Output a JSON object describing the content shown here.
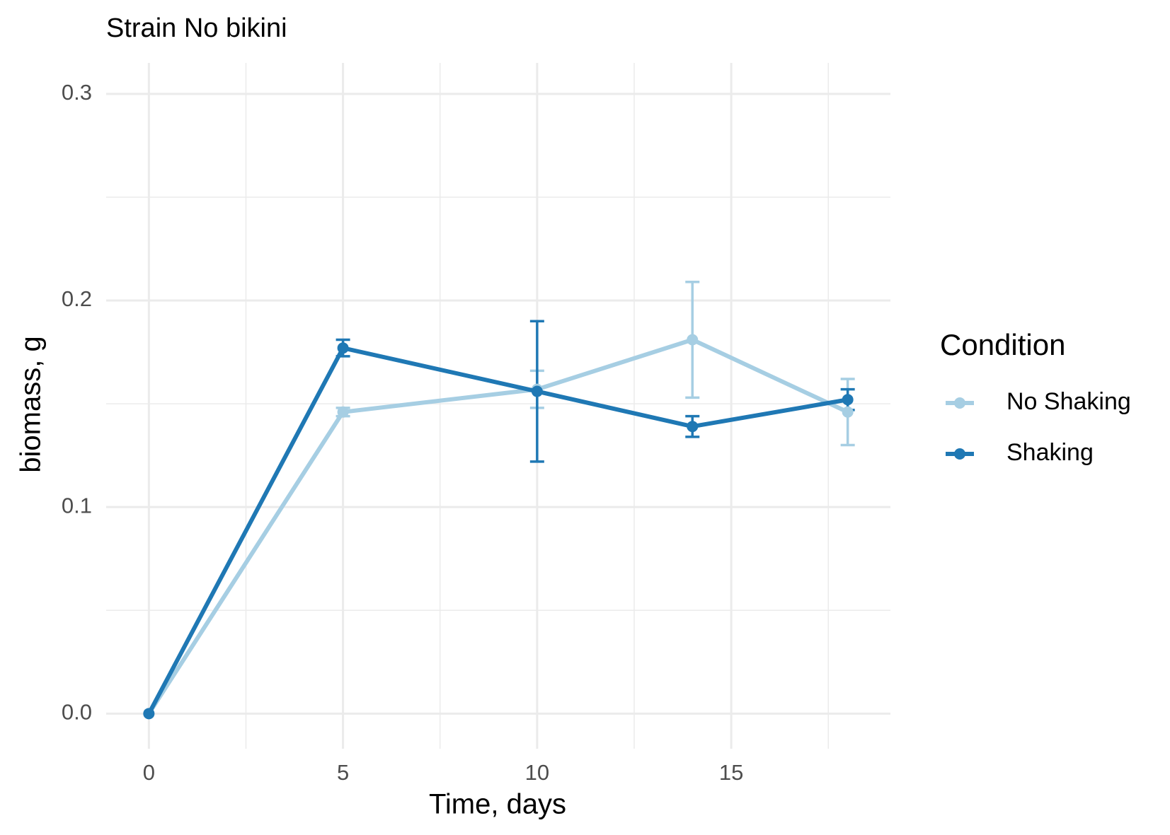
{
  "chart_data": {
    "type": "line",
    "title": "Strain No  bikini",
    "x_label": "Time, days",
    "y_label": "biomass, g",
    "legend_title": "Condition",
    "legend_position": "right",
    "grid": true,
    "xlim": [
      -1.1,
      19.1
    ],
    "xticks": [
      0,
      5,
      10,
      15
    ],
    "x_minor_grid": [
      2.5,
      7.5,
      12.5,
      17.5
    ],
    "ylim": [
      -0.017,
      0.315
    ],
    "yticks": [
      {
        "value": 0,
        "label": "0.0"
      },
      0.1,
      0.2,
      0.3
    ],
    "y_minor_grid": [
      0.05,
      0.15,
      0.25
    ],
    "x": [
      0,
      5,
      10,
      14,
      18
    ],
    "series": [
      {
        "name": "No Shaking",
        "color": "#a6cee3",
        "values": [
          0,
          0.146,
          0.157,
          0.181,
          0.146
        ],
        "errors": [
          0,
          0.002,
          0.009,
          0.028,
          0.016
        ]
      },
      {
        "name": "Shaking",
        "color": "#1f78b4",
        "values": [
          0,
          0.177,
          0.156,
          0.139,
          0.152
        ],
        "errors": [
          0,
          0.004,
          0.034,
          0.005,
          0.005
        ]
      }
    ]
  }
}
